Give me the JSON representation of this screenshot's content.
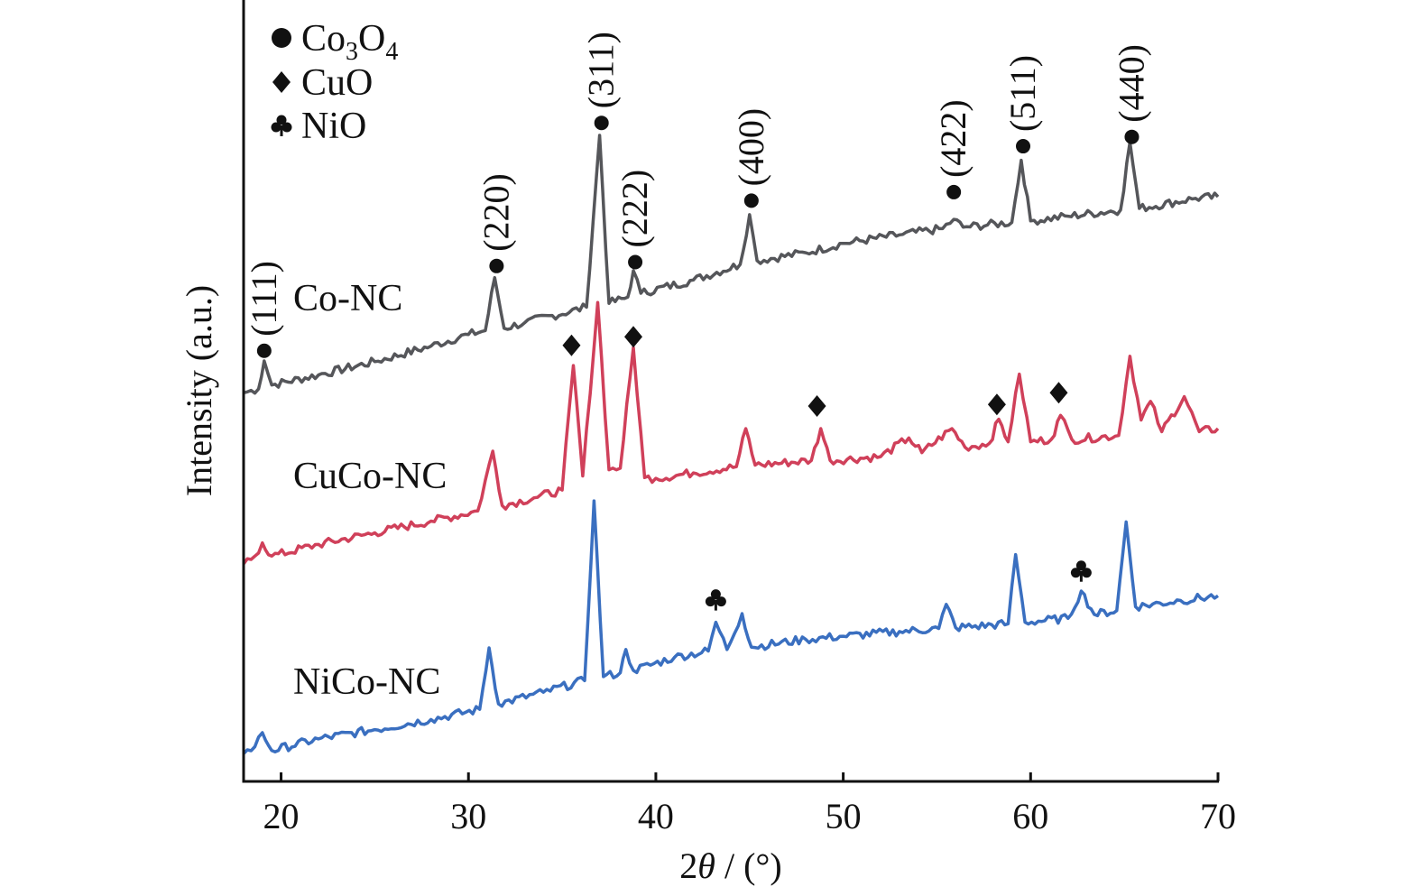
{
  "chart_data": {
    "type": "line",
    "title": "",
    "xlabel_parts": {
      "prefix": "2",
      "theta": "θ",
      "suffix": " / (°)"
    },
    "ylabel": "Intensity (a.u.)",
    "xlim": [
      18,
      70
    ],
    "ylim": [
      0,
      100
    ],
    "xticks": [
      20,
      30,
      40,
      50,
      60,
      70
    ],
    "grid": false,
    "legend": {
      "placement": "top-left",
      "entries": [
        {
          "marker": "circle",
          "label_main": "Co",
          "sub1": "3",
          "mid": "O",
          "sub2": "4"
        },
        {
          "marker": "diamond",
          "label": "CuO"
        },
        {
          "marker": "club",
          "label": "NiO"
        }
      ]
    },
    "series": [
      {
        "name": "Co-NC",
        "color": "#55565a",
        "points": [
          [
            18,
            49.5
          ],
          [
            18.8,
            50
          ],
          [
            19.1,
            53.6
          ],
          [
            19.5,
            50.5
          ],
          [
            22,
            51.8
          ],
          [
            25,
            53.5
          ],
          [
            28,
            55.5
          ],
          [
            30,
            57
          ],
          [
            30.9,
            57.5
          ],
          [
            31.4,
            64.3
          ],
          [
            31.9,
            57.8
          ],
          [
            33,
            58.5
          ],
          [
            36.3,
            60.5
          ],
          [
            37.0,
            82.6
          ],
          [
            37.5,
            61
          ],
          [
            38.5,
            61.8
          ],
          [
            38.8,
            65.2
          ],
          [
            39.2,
            62.3
          ],
          [
            42,
            64
          ],
          [
            44.5,
            66
          ],
          [
            45,
            72.4
          ],
          [
            45.4,
            66.5
          ],
          [
            48,
            67.5
          ],
          [
            50,
            68.7
          ],
          [
            53,
            69.8
          ],
          [
            55.3,
            70.6
          ],
          [
            55.9,
            71.8
          ],
          [
            56.4,
            70.8
          ],
          [
            59,
            71.4
          ],
          [
            59.5,
            79.4
          ],
          [
            60,
            71.6
          ],
          [
            62,
            72.2
          ],
          [
            64.8,
            73
          ],
          [
            65.3,
            81.7
          ],
          [
            65.8,
            73.2
          ],
          [
            68.8,
            74.5
          ],
          [
            70,
            74.7
          ]
        ]
      },
      {
        "name": "CuCo-NC",
        "color": "#d0405a",
        "points": [
          [
            18,
            27.5
          ],
          [
            18.6,
            28.5
          ],
          [
            19,
            30.2
          ],
          [
            19.5,
            28.5
          ],
          [
            22,
            30
          ],
          [
            25,
            31.5
          ],
          [
            28,
            33
          ],
          [
            30.5,
            34.3
          ],
          [
            31.3,
            42
          ],
          [
            31.8,
            35
          ],
          [
            33.5,
            36
          ],
          [
            35,
            37
          ],
          [
            35.6,
            53
          ],
          [
            36.1,
            38.8
          ],
          [
            36.9,
            61.1
          ],
          [
            37.5,
            39.6
          ],
          [
            38.1,
            39.8
          ],
          [
            38.8,
            55.3
          ],
          [
            39.4,
            38.6
          ],
          [
            40,
            38.5
          ],
          [
            42,
            39.2
          ],
          [
            44.3,
            40
          ],
          [
            44.8,
            44.9
          ],
          [
            45.3,
            40.2
          ],
          [
            48.3,
            40.8
          ],
          [
            48.8,
            44.9
          ],
          [
            49.3,
            40.8
          ],
          [
            52,
            41.3
          ],
          [
            53.5,
            43.7
          ],
          [
            54.2,
            41.8
          ],
          [
            55.8,
            44.9
          ],
          [
            56.5,
            42.5
          ],
          [
            57.8,
            43
          ],
          [
            58.3,
            46.1
          ],
          [
            58.8,
            43.2
          ],
          [
            59.4,
            51.9
          ],
          [
            60,
            43.2
          ],
          [
            61.1,
            43.5
          ],
          [
            61.6,
            46.6
          ],
          [
            62.2,
            43.5
          ],
          [
            64.7,
            44
          ],
          [
            65.3,
            54.2
          ],
          [
            65.9,
            46
          ],
          [
            66.4,
            48.4
          ],
          [
            67,
            44.5
          ],
          [
            68.2,
            49
          ],
          [
            69,
            44.5
          ],
          [
            70,
            44.9
          ]
        ]
      },
      {
        "name": "NiCo-NC",
        "color": "#3a6fc0",
        "points": [
          [
            18,
            3.1
          ],
          [
            18.6,
            4
          ],
          [
            19,
            5.8
          ],
          [
            19.5,
            3.5
          ],
          [
            22,
            5
          ],
          [
            25,
            6.2
          ],
          [
            28,
            7.5
          ],
          [
            30.6,
            8.8
          ],
          [
            31.1,
            16.7
          ],
          [
            31.6,
            9.5
          ],
          [
            34,
            11
          ],
          [
            36.2,
            12.5
          ],
          [
            36.7,
            35.6
          ],
          [
            37.2,
            13
          ],
          [
            38.1,
            13.5
          ],
          [
            38.4,
            16.5
          ],
          [
            38.8,
            13.8
          ],
          [
            41,
            15.5
          ],
          [
            42.8,
            16.3
          ],
          [
            43.2,
            20
          ],
          [
            43.8,
            16.5
          ],
          [
            44.6,
            21.1
          ],
          [
            45.1,
            16.8
          ],
          [
            48,
            17.8
          ],
          [
            50,
            18.2
          ],
          [
            53,
            18.8
          ],
          [
            55.1,
            19.2
          ],
          [
            55.5,
            22.3
          ],
          [
            56,
            19.3
          ],
          [
            58.8,
            19.8
          ],
          [
            59.2,
            28.7
          ],
          [
            59.7,
            20
          ],
          [
            62,
            20.5
          ],
          [
            62.7,
            24
          ],
          [
            63.4,
            21
          ],
          [
            64.6,
            21.5
          ],
          [
            65.1,
            32.9
          ],
          [
            65.6,
            22
          ],
          [
            68,
            22.8
          ],
          [
            70,
            23.4
          ]
        ]
      }
    ],
    "annotations": {
      "co3o4_peaks": [
        {
          "x": 19.1,
          "y": 54.9,
          "hkl": "(111)"
        },
        {
          "x": 31.5,
          "y": 65.8,
          "hkl": "(220)"
        },
        {
          "x": 37.1,
          "y": 84.2,
          "hkl": "(311)"
        },
        {
          "x": 38.9,
          "y": 66.3,
          "hkl": "(222)"
        },
        {
          "x": 45.1,
          "y": 74.2,
          "hkl": "(400)"
        },
        {
          "x": 55.9,
          "y": 75.3,
          "hkl": "(422)"
        },
        {
          "x": 59.6,
          "y": 81.2,
          "hkl": "(511)"
        },
        {
          "x": 65.4,
          "y": 82.4,
          "hkl": "(440)"
        }
      ],
      "cuo_peaks": [
        {
          "x": 35.5,
          "y": 55.6
        },
        {
          "x": 38.8,
          "y": 56.7
        },
        {
          "x": 48.6,
          "y": 47.8
        },
        {
          "x": 58.2,
          "y": 48
        },
        {
          "x": 61.5,
          "y": 49.5
        }
      ],
      "nio_peaks": [
        {
          "x": 43.2,
          "y": 22.9
        },
        {
          "x": 62.7,
          "y": 26.6
        }
      ]
    }
  }
}
